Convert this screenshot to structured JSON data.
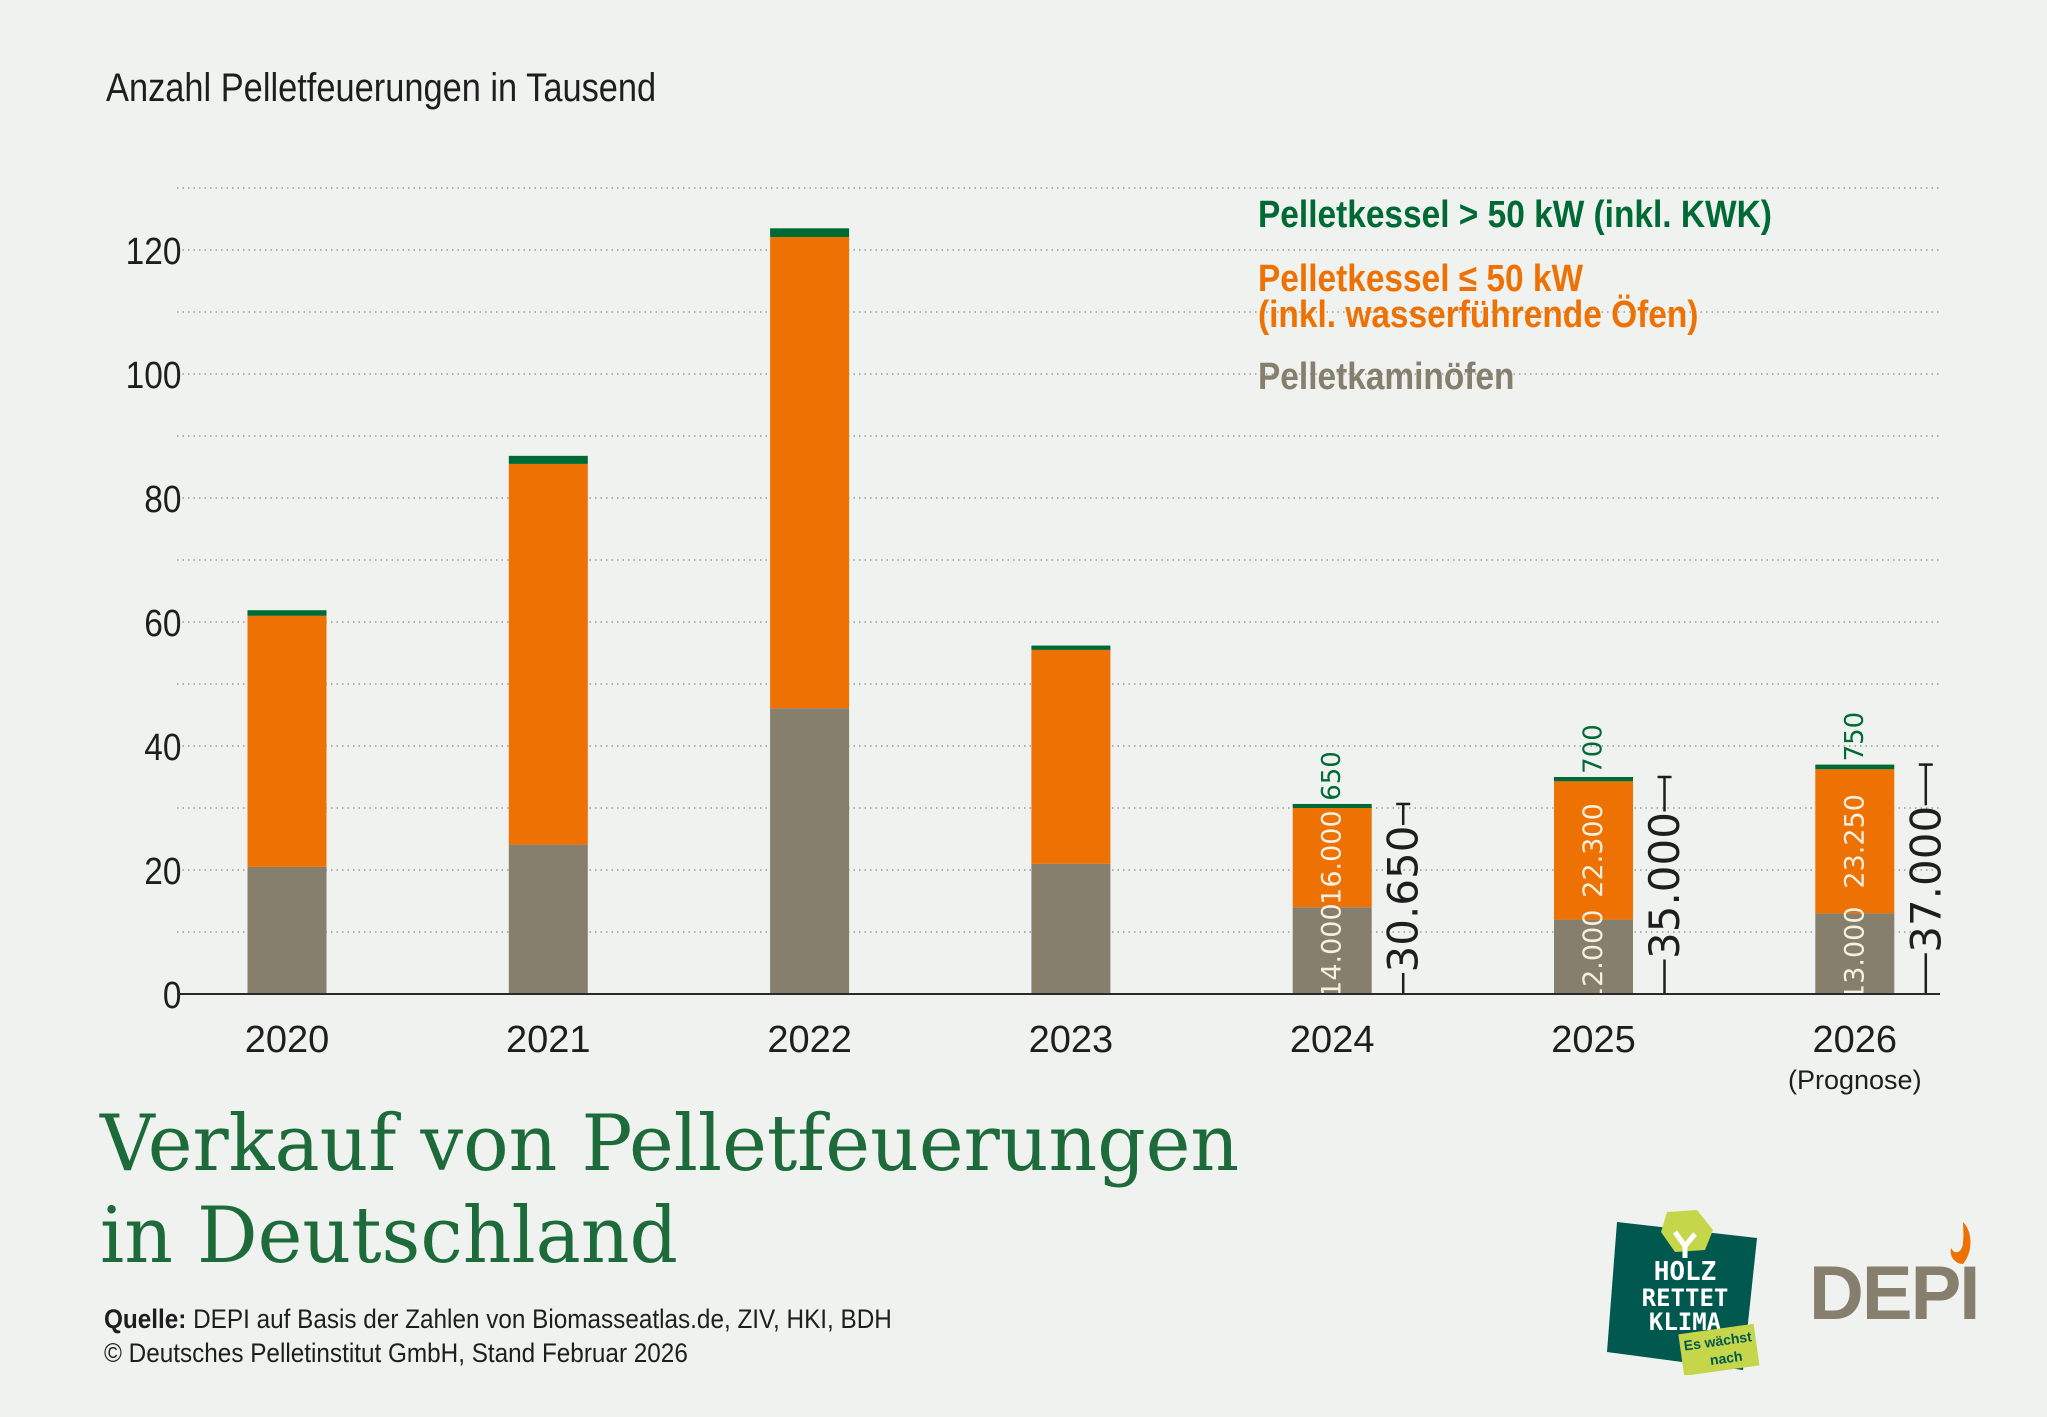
{
  "header": {
    "unit_label": "Anzahl Pelletfeuerungen in Tausend"
  },
  "legend": {
    "items": [
      {
        "key": "green",
        "label": "Pelletkessel > 50 kW (inkl. KWK)",
        "color": "#006a35"
      },
      {
        "key": "orange",
        "label_line1": "Pelletkessel ≤ 50 kW",
        "label_line2": "(inkl. wasserführende Öfen)",
        "color": "#ee7203"
      },
      {
        "key": "gray",
        "label": "Pelletkaminöfen",
        "color": "#877f6e"
      }
    ]
  },
  "title": {
    "line1": "Verkauf von Pelletfeuerungen",
    "line2": "in Deutschland"
  },
  "source": {
    "label": "Quelle:",
    "text": " DEPI auf Basis der Zahlen von Biomasseatlas.de, ZIV, HKI, BDH",
    "copyright": "© Deutsches Pelletinstitut GmbH, Stand Februar 2026"
  },
  "logos": {
    "holz_rettet_klima": {
      "line1": "HOLZ",
      "line2": "RETTET",
      "line3": "KLIMA",
      "tag1": "Es wächst",
      "tag2": "nach"
    },
    "depi": {
      "text": "DEPI"
    }
  },
  "colors": {
    "background": "#f0f2f0",
    "green": "#006a35",
    "orange": "#ee7203",
    "gray": "#877f6e",
    "title_green": "#1d6b3a",
    "text": "#1e1e1e"
  },
  "chart_data": {
    "type": "bar",
    "stacked": true,
    "title": "Verkauf von Pelletfeuerungen in Deutschland",
    "ylabel": "Anzahl Pelletfeuerungen in Tausend",
    "xlabel": "",
    "ylim": [
      0,
      130
    ],
    "yticks": [
      0,
      20,
      40,
      60,
      80,
      100,
      120
    ],
    "grid": true,
    "legend_position": "top-right",
    "categories": [
      "2020",
      "2021",
      "2022",
      "2023",
      "2024",
      "2025",
      "2026"
    ],
    "category_sublabels": [
      "",
      "",
      "",
      "",
      "",
      "",
      "(Prognose)"
    ],
    "series": [
      {
        "name": "Pelletkaminöfen",
        "color": "#877f6e",
        "values": [
          20.5,
          24.1,
          46.1,
          21.0,
          14.0,
          12.0,
          13.0
        ]
      },
      {
        "name": "Pelletkessel ≤ 50 kW (inkl. wasserführende Öfen)",
        "color": "#ee7203",
        "values": [
          40.5,
          61.4,
          76.0,
          34.5,
          16.0,
          22.3,
          23.25
        ]
      },
      {
        "name": "Pelletkessel > 50 kW (inkl. KWK)",
        "color": "#006a35",
        "values": [
          0.9,
          1.3,
          1.4,
          0.7,
          0.65,
          0.7,
          0.75
        ]
      }
    ],
    "data_labels": [
      null,
      null,
      null,
      null,
      {
        "gray": "14.000",
        "orange": "16.000",
        "green": "650",
        "total": "30.650"
      },
      {
        "gray": "12.000",
        "orange": "22.300",
        "green": "700",
        "total": "35.000"
      },
      {
        "gray": "13.000",
        "orange": "23.250",
        "green": "750",
        "total": "37.000"
      }
    ]
  }
}
